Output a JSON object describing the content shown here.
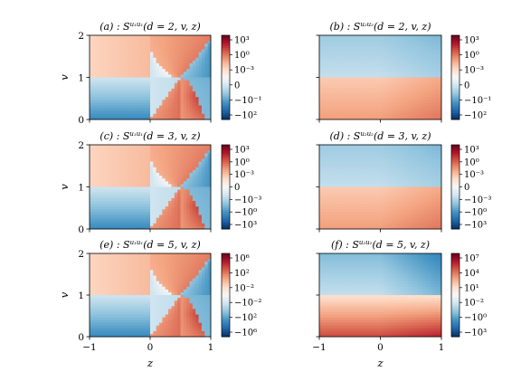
{
  "chart_data": [
    {
      "id": "a",
      "type": "heatmap",
      "title": "(a) : S^{u1u1}(d = 2, v, z)",
      "title_main": "(a) : S",
      "title_sup": "u₁u₁",
      "title_args": "(d = 2, v, z)",
      "pattern": "diag",
      "d": 2,
      "x": {
        "label": "",
        "range": [
          -1,
          1
        ],
        "ticks": []
      },
      "y": {
        "label": "v",
        "range": [
          0,
          2
        ],
        "ticks": [
          "0",
          "1",
          "2"
        ]
      },
      "colorbar": {
        "scale": "symlog",
        "colormap": "RdBu_r",
        "ticks": [
          "10³",
          "10⁰",
          "10⁻³",
          "0",
          "−10⁻¹",
          "−10²"
        ]
      }
    },
    {
      "id": "b",
      "type": "heatmap",
      "title": "(b) : S^{u2u2}(d = 2, v, z)",
      "title_main": "(b) : S",
      "title_sup": "u₂u₂",
      "title_args": "(d = 2, v, z)",
      "pattern": "split",
      "d": 2,
      "x": {
        "label": "",
        "range": [
          -1,
          1
        ],
        "ticks": []
      },
      "y": {
        "label": "",
        "range": [
          0,
          2
        ],
        "ticks": []
      },
      "colorbar": {
        "scale": "symlog",
        "colormap": "RdBu_r",
        "ticks": [
          "10³",
          "10⁰",
          "10⁻³",
          "0",
          "−10⁻¹",
          "−10²"
        ]
      }
    },
    {
      "id": "c",
      "type": "heatmap",
      "title": "(c) : S^{u1u1}(d = 3, v, z)",
      "title_main": "(c) : S",
      "title_sup": "u₁u₁",
      "title_args": "(d = 3, v, z)",
      "pattern": "diag",
      "d": 3,
      "x": {
        "label": "",
        "range": [
          -1,
          1
        ],
        "ticks": []
      },
      "y": {
        "label": "v",
        "range": [
          0,
          2
        ],
        "ticks": [
          "0",
          "1",
          "2"
        ]
      },
      "colorbar": {
        "scale": "symlog",
        "colormap": "RdBu_r",
        "ticks": [
          "10³",
          "10⁰",
          "10⁻³",
          "0",
          "−10⁻³",
          "−10⁰",
          "−10³"
        ]
      }
    },
    {
      "id": "d",
      "type": "heatmap",
      "title": "(d) : S^{u2u2}(d = 3, v, z)",
      "title_main": "(d) : S",
      "title_sup": "u₂u₂",
      "title_args": "(d = 3, v, z)",
      "pattern": "split",
      "d": 3,
      "x": {
        "label": "",
        "range": [
          -1,
          1
        ],
        "ticks": []
      },
      "y": {
        "label": "",
        "range": [
          0,
          2
        ],
        "ticks": []
      },
      "colorbar": {
        "scale": "symlog",
        "colormap": "RdBu_r",
        "ticks": [
          "10³",
          "10⁰",
          "10⁻³",
          "0",
          "−10⁻³",
          "−10⁰",
          "−10³"
        ]
      }
    },
    {
      "id": "e",
      "type": "heatmap",
      "title": "(e) : S^{u1u1}(d = 5, v, z)",
      "title_main": "(e) : S",
      "title_sup": "u₁u₁",
      "title_args": "(d = 5, v, z)",
      "pattern": "diag",
      "d": 5,
      "x": {
        "label": "z",
        "range": [
          -1,
          1
        ],
        "ticks": [
          "−1",
          "0",
          "1"
        ]
      },
      "y": {
        "label": "v",
        "range": [
          0,
          2
        ],
        "ticks": [
          "0",
          "1",
          "2"
        ]
      },
      "colorbar": {
        "scale": "symlog",
        "colormap": "RdBu_r",
        "ticks": [
          "10⁶",
          "10²",
          "10⁻²",
          "−10⁻²",
          "−10²",
          "−10⁶"
        ]
      }
    },
    {
      "id": "f",
      "type": "heatmap",
      "title": "(f) : S^{u2u2}(d = 5, v, z)",
      "title_main": "(f) : S",
      "title_sup": "u₂u₂",
      "title_args": "(d = 5, v, z)",
      "pattern": "split",
      "d": 5,
      "x": {
        "label": "z",
        "range": [
          -1,
          1
        ],
        "ticks": [
          "−1",
          "0",
          "1"
        ]
      },
      "y": {
        "label": "",
        "range": [
          0,
          2
        ],
        "ticks": []
      },
      "colorbar": {
        "scale": "symlog",
        "colormap": "RdBu_r",
        "ticks": [
          "10⁷",
          "10⁴",
          "10¹",
          "10⁻²",
          "−10⁰",
          "−10³"
        ]
      }
    }
  ]
}
